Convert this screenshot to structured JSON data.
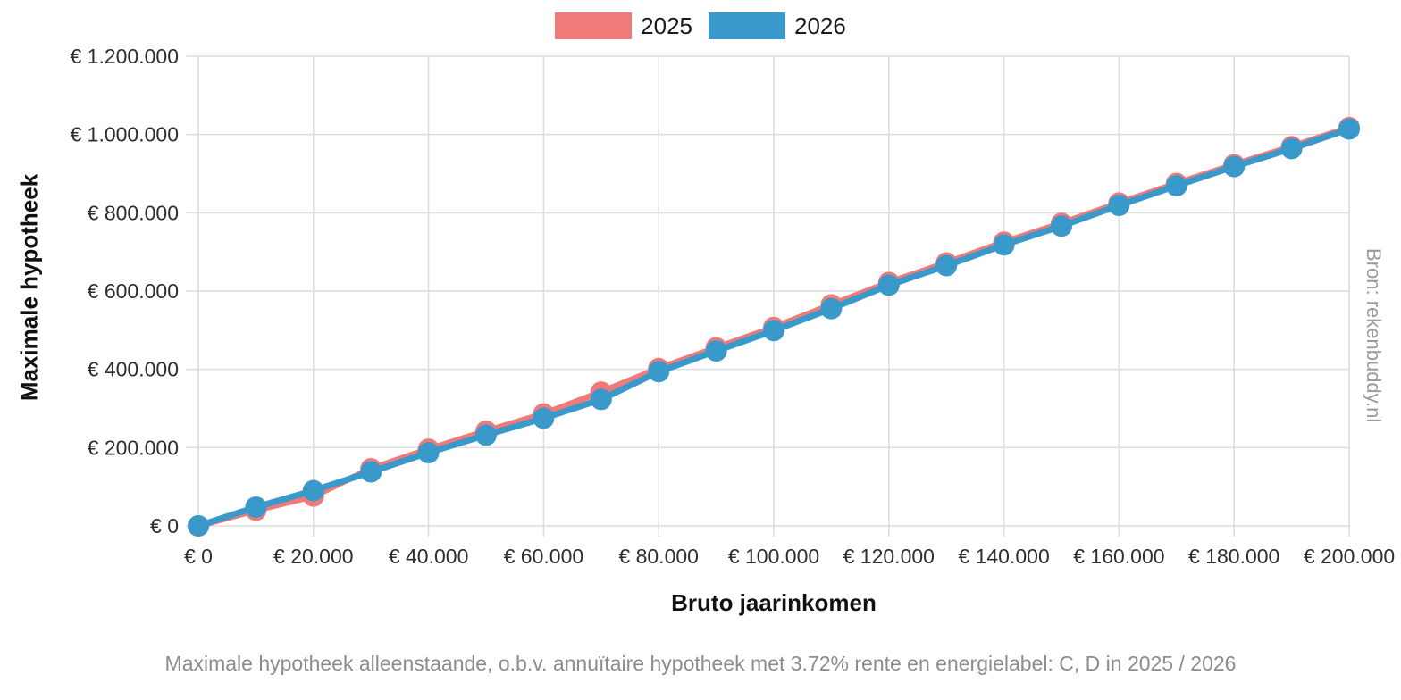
{
  "legend": {
    "items": [
      {
        "label": "2025",
        "color": "#f07979"
      },
      {
        "label": "2026",
        "color": "#3a99cb"
      }
    ]
  },
  "chart_data": {
    "type": "line",
    "title": "",
    "xlabel": "Bruto jaarinkomen",
    "ylabel": "Maximale hypotheek",
    "x": [
      0,
      10000,
      20000,
      30000,
      40000,
      50000,
      60000,
      70000,
      80000,
      90000,
      100000,
      110000,
      120000,
      130000,
      140000,
      150000,
      160000,
      170000,
      180000,
      190000,
      200000
    ],
    "series": [
      {
        "name": "2025",
        "color": "#f07979",
        "values": [
          0,
          40000,
          76000,
          146000,
          196000,
          242000,
          286000,
          342000,
          402000,
          455000,
          507000,
          565000,
          622000,
          672000,
          725000,
          773000,
          825000,
          875000,
          923000,
          969000,
          1018000
        ]
      },
      {
        "name": "2026",
        "color": "#3a99cb",
        "values": [
          0,
          48000,
          90000,
          138000,
          187000,
          232000,
          275000,
          323000,
          394000,
          447000,
          499000,
          555000,
          615000,
          665000,
          718000,
          766000,
          819000,
          869000,
          918000,
          964000,
          1014000
        ]
      }
    ],
    "xlim": [
      0,
      200000
    ],
    "ylim": [
      0,
      1200000
    ],
    "x_tick_step": 20000,
    "y_tick_step": 200000,
    "x_tick_labels": [
      "€ 0",
      "€ 20.000",
      "€ 40.000",
      "€ 60.000",
      "€ 80.000",
      "€ 100.000",
      "€ 120.000",
      "€ 140.000",
      "€ 160.000",
      "€ 180.000",
      "€ 200.000"
    ],
    "y_tick_labels": [
      "€ 0",
      "€ 200.000",
      "€ 400.000",
      "€ 600.000",
      "€ 800.000",
      "€ 1.000.000",
      "€ 1.200.000"
    ],
    "grid": true,
    "grid_color": "#dcdcdc",
    "tick_label_color": "#2e2e2e",
    "legend_position": "top"
  },
  "caption": "Maximale hypotheek alleenstaande, o.b.v. annuïtaire hypotheek met 3.72% rente en energielabel: C, D in 2025 / 2026",
  "source": "Bron: rekenbuddy.nl"
}
